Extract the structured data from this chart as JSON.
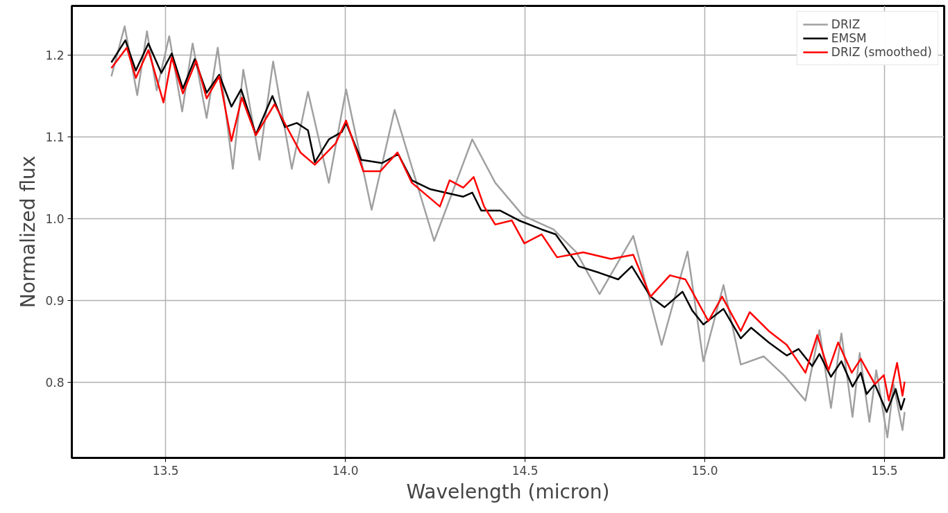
{
  "chart_data": {
    "type": "line",
    "xlabel": "Wavelength (micron)",
    "ylabel": "Normalized flux",
    "xlim": [
      13.239,
      15.666
    ],
    "ylim": [
      0.708,
      1.26
    ],
    "xticks": [
      13.5,
      {
        "value": 14,
        "label": "14.0"
      },
      14.5,
      {
        "value": 15,
        "label": "15.0"
      },
      15.5
    ],
    "yticks": [
      0.8,
      0.9,
      {
        "value": 1,
        "label": "1.0"
      },
      1.1,
      1.2
    ],
    "grid": true,
    "legend": "top right",
    "line_style": "solid",
    "marker": "none",
    "series": [
      {
        "name": "DRIZ",
        "color": "#a0a0a0",
        "x": [
          13.349,
          13.386,
          13.421,
          13.448,
          13.475,
          13.51,
          13.546,
          13.575,
          13.614,
          13.645,
          13.687,
          13.716,
          13.761,
          13.799,
          13.851,
          13.896,
          13.954,
          14.002,
          14.073,
          14.137,
          14.247,
          14.353,
          14.417,
          14.494,
          14.579,
          14.643,
          14.707,
          14.801,
          14.88,
          14.952,
          14.996,
          15.052,
          15.1,
          15.164,
          15.222,
          15.28,
          15.319,
          15.351,
          15.38,
          15.411,
          15.431,
          15.458,
          15.477,
          15.508,
          15.525,
          15.55,
          15.556
        ],
        "values": [
          1.174,
          1.235,
          1.151,
          1.229,
          1.157,
          1.223,
          1.131,
          1.214,
          1.123,
          1.209,
          1.061,
          1.182,
          1.072,
          1.192,
          1.061,
          1.155,
          1.044,
          1.158,
          1.011,
          1.133,
          0.973,
          1.097,
          1.044,
          1.004,
          0.987,
          0.959,
          0.908,
          0.979,
          0.846,
          0.96,
          0.826,
          0.919,
          0.822,
          0.832,
          0.808,
          0.778,
          0.864,
          0.769,
          0.86,
          0.758,
          0.836,
          0.752,
          0.815,
          0.733,
          0.798,
          0.742,
          0.764
        ]
      },
      {
        "name": "EMSM",
        "color": "#000000",
        "x": [
          13.349,
          13.388,
          13.417,
          13.452,
          13.488,
          13.517,
          13.548,
          13.581,
          13.614,
          13.649,
          13.683,
          13.71,
          13.751,
          13.797,
          13.832,
          13.865,
          13.896,
          13.915,
          13.954,
          13.99,
          14.002,
          14.044,
          14.102,
          14.147,
          14.185,
          14.237,
          14.328,
          14.353,
          14.378,
          14.431,
          14.483,
          14.546,
          14.585,
          14.649,
          14.707,
          14.759,
          14.797,
          14.849,
          14.888,
          14.938,
          14.965,
          14.996,
          15.052,
          15.1,
          15.129,
          15.178,
          15.228,
          15.261,
          15.299,
          15.319,
          15.351,
          15.38,
          15.411,
          15.434,
          15.45,
          15.473,
          15.506,
          15.531,
          15.546,
          15.556
        ],
        "values": [
          1.191,
          1.218,
          1.181,
          1.214,
          1.178,
          1.202,
          1.159,
          1.195,
          1.154,
          1.176,
          1.137,
          1.158,
          1.103,
          1.15,
          1.112,
          1.117,
          1.108,
          1.069,
          1.097,
          1.106,
          1.117,
          1.072,
          1.068,
          1.079,
          1.047,
          1.036,
          1.027,
          1.032,
          1.01,
          1.01,
          0.998,
          0.987,
          0.981,
          0.942,
          0.934,
          0.926,
          0.942,
          0.905,
          0.892,
          0.911,
          0.888,
          0.871,
          0.89,
          0.854,
          0.867,
          0.849,
          0.833,
          0.841,
          0.82,
          0.835,
          0.807,
          0.826,
          0.795,
          0.812,
          0.786,
          0.798,
          0.764,
          0.792,
          0.767,
          0.781
        ]
      },
      {
        "name": "DRIZ (smoothed)",
        "color": "#ff0000",
        "x": [
          13.349,
          13.392,
          13.417,
          13.452,
          13.494,
          13.517,
          13.548,
          13.585,
          13.614,
          13.649,
          13.683,
          13.712,
          13.751,
          13.803,
          13.875,
          13.915,
          13.973,
          14.002,
          14.05,
          14.097,
          14.145,
          14.185,
          14.263,
          14.29,
          14.328,
          14.357,
          14.386,
          14.417,
          14.463,
          14.498,
          14.546,
          14.589,
          14.662,
          14.739,
          14.801,
          14.849,
          14.903,
          14.946,
          14.965,
          15.01,
          15.048,
          15.1,
          15.125,
          15.178,
          15.228,
          15.28,
          15.313,
          15.344,
          15.371,
          15.409,
          15.434,
          15.473,
          15.498,
          15.512,
          15.535,
          15.55,
          15.556
        ],
        "values": [
          1.184,
          1.209,
          1.172,
          1.206,
          1.142,
          1.197,
          1.153,
          1.193,
          1.147,
          1.174,
          1.095,
          1.148,
          1.102,
          1.14,
          1.081,
          1.066,
          1.092,
          1.12,
          1.058,
          1.058,
          1.081,
          1.044,
          1.015,
          1.047,
          1.038,
          1.051,
          1.015,
          0.993,
          0.998,
          0.97,
          0.981,
          0.953,
          0.959,
          0.951,
          0.956,
          0.905,
          0.931,
          0.926,
          0.911,
          0.875,
          0.905,
          0.863,
          0.886,
          0.863,
          0.846,
          0.812,
          0.858,
          0.815,
          0.849,
          0.812,
          0.829,
          0.798,
          0.809,
          0.778,
          0.824,
          0.784,
          0.801
        ]
      }
    ]
  }
}
